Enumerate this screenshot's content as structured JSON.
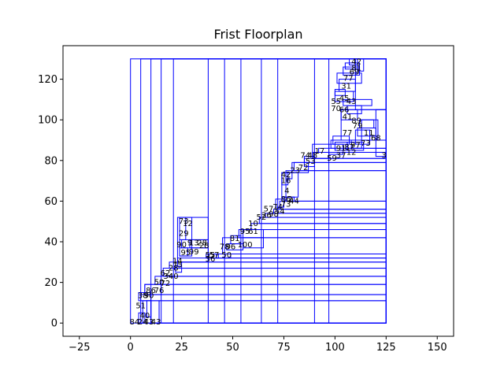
{
  "chart_data": {
    "type": "rectangles",
    "title": "Frist Floorplan",
    "xlabel": "",
    "ylabel": "",
    "xlim": [
      -33,
      158
    ],
    "ylim": [
      -6.5,
      136.5
    ],
    "xticks": [
      -25,
      0,
      25,
      50,
      75,
      100,
      125,
      150
    ],
    "yticks": [
      0,
      20,
      40,
      60,
      80,
      100,
      120
    ],
    "grid": false,
    "edge_color": "#0000ff",
    "rects": [
      {
        "x": 0,
        "y": 0,
        "w": 125,
        "h": 130
      },
      {
        "x": 5,
        "y": 0,
        "w": 120,
        "h": 130
      },
      {
        "x": 10,
        "y": 0,
        "w": 115,
        "h": 130
      },
      {
        "x": 15,
        "y": 0,
        "w": 110,
        "h": 130
      },
      {
        "x": 21,
        "y": 0,
        "w": 104,
        "h": 130
      },
      {
        "x": 38,
        "y": 0,
        "w": 87,
        "h": 130
      },
      {
        "x": 46,
        "y": 0,
        "w": 79,
        "h": 130
      },
      {
        "x": 54,
        "y": 0,
        "w": 71,
        "h": 130
      },
      {
        "x": 64,
        "y": 0,
        "w": 61,
        "h": 130
      },
      {
        "x": 72,
        "y": 0,
        "w": 53,
        "h": 130
      },
      {
        "x": 90,
        "y": 0,
        "w": 35,
        "h": 130
      },
      {
        "x": 97,
        "y": 0,
        "w": 28,
        "h": 130
      },
      {
        "x": 14,
        "y": 0,
        "w": 111,
        "h": 11
      },
      {
        "x": 5,
        "y": 11,
        "w": 120,
        "h": 3
      },
      {
        "x": 7,
        "y": 14,
        "w": 118,
        "h": 5
      },
      {
        "x": 12,
        "y": 19,
        "w": 113,
        "h": 4
      },
      {
        "x": 16,
        "y": 23,
        "w": 109,
        "h": 4
      },
      {
        "x": 19,
        "y": 27,
        "w": 106,
        "h": 3
      },
      {
        "x": 23,
        "y": 30,
        "w": 102,
        "h": 2
      },
      {
        "x": 37,
        "y": 32,
        "w": 88,
        "h": 2
      },
      {
        "x": 45,
        "y": 34,
        "w": 80,
        "h": 8
      },
      {
        "x": 53,
        "y": 42,
        "w": 72,
        "h": 4
      },
      {
        "x": 59,
        "y": 46,
        "w": 66,
        "h": 3
      },
      {
        "x": 63,
        "y": 49,
        "w": 62,
        "h": 3
      },
      {
        "x": 66,
        "y": 52,
        "w": 59,
        "h": 2
      },
      {
        "x": 70,
        "y": 54,
        "w": 55,
        "h": 2
      },
      {
        "x": 73,
        "y": 56,
        "w": 52,
        "h": 4
      },
      {
        "x": 76,
        "y": 60,
        "w": 49,
        "h": 15
      },
      {
        "x": 80,
        "y": 75,
        "w": 45,
        "h": 4
      },
      {
        "x": 85,
        "y": 79,
        "w": 40,
        "h": 2
      },
      {
        "x": 89,
        "y": 81,
        "w": 36,
        "h": 3
      },
      {
        "x": 92,
        "y": 84,
        "w": 33,
        "h": 2
      },
      {
        "x": 98,
        "y": 86,
        "w": 27,
        "h": 4
      },
      {
        "x": 103,
        "y": 90,
        "w": 22,
        "h": 15
      },
      {
        "x": 110,
        "y": 105,
        "w": 15,
        "h": 25
      },
      {
        "x": 22,
        "y": 25,
        "w": 3,
        "h": 3
      },
      {
        "x": 23,
        "y": 28,
        "w": 2,
        "h": 2
      },
      {
        "x": 23,
        "y": 30,
        "w": 15,
        "h": 22
      },
      {
        "x": 24,
        "y": 33,
        "w": 6,
        "h": 19
      },
      {
        "x": 24,
        "y": 41,
        "w": 3,
        "h": 11
      },
      {
        "x": 24,
        "y": 33,
        "w": 4,
        "h": 4
      },
      {
        "x": 25,
        "y": 37,
        "w": 13,
        "h": 4
      },
      {
        "x": 29,
        "y": 37,
        "w": 9,
        "h": 4
      },
      {
        "x": 38,
        "y": 32,
        "w": 5,
        "h": 2
      },
      {
        "x": 42,
        "y": 32,
        "w": 7,
        "h": 2
      },
      {
        "x": 47,
        "y": 36,
        "w": 8,
        "h": 3
      },
      {
        "x": 49,
        "y": 39,
        "w": 5,
        "h": 4
      },
      {
        "x": 55,
        "y": 37,
        "w": 10,
        "h": 5
      },
      {
        "x": 55,
        "y": 42,
        "w": 10,
        "h": 4
      },
      {
        "x": 71,
        "y": 57,
        "w": 4,
        "h": 4
      },
      {
        "x": 74,
        "y": 60,
        "w": 6,
        "h": 2
      },
      {
        "x": 74,
        "y": 62,
        "w": 8,
        "h": 12
      },
      {
        "x": 74,
        "y": 68,
        "w": 3,
        "h": 6
      },
      {
        "x": 76,
        "y": 71,
        "w": 3,
        "h": 3
      },
      {
        "x": 79,
        "y": 74,
        "w": 8,
        "h": 5
      },
      {
        "x": 85,
        "y": 77,
        "w": 5,
        "h": 5
      },
      {
        "x": 89,
        "y": 81,
        "w": 8,
        "h": 7
      },
      {
        "x": 97,
        "y": 83,
        "w": 7,
        "h": 5
      },
      {
        "x": 99,
        "y": 88,
        "w": 8,
        "h": 4
      },
      {
        "x": 100,
        "y": 85,
        "w": 6,
        "h": 4
      },
      {
        "x": 106,
        "y": 85,
        "w": 8,
        "h": 4
      },
      {
        "x": 108,
        "y": 86,
        "w": 5,
        "h": 4
      },
      {
        "x": 110,
        "y": 88,
        "w": 7,
        "h": 7
      },
      {
        "x": 111,
        "y": 92,
        "w": 9,
        "h": 4
      },
      {
        "x": 112,
        "y": 96,
        "w": 7,
        "h": 4
      },
      {
        "x": 113,
        "y": 90,
        "w": 8,
        "h": 10
      },
      {
        "x": 120,
        "y": 82,
        "w": 5,
        "h": 23
      },
      {
        "x": 103,
        "y": 100,
        "w": 8,
        "h": 5
      },
      {
        "x": 106,
        "y": 103,
        "w": 7,
        "h": 4
      },
      {
        "x": 104,
        "y": 107,
        "w": 14,
        "h": 3
      },
      {
        "x": 100,
        "y": 109,
        "w": 9,
        "h": 5
      },
      {
        "x": 100,
        "y": 112,
        "w": 5,
        "h": 3
      },
      {
        "x": 102,
        "y": 114,
        "w": 8,
        "h": 6
      },
      {
        "x": 101,
        "y": 118,
        "w": 12,
        "h": 5
      },
      {
        "x": 104,
        "y": 122,
        "w": 8,
        "h": 4
      },
      {
        "x": 105,
        "y": 125,
        "w": 7,
        "h": 3
      },
      {
        "x": 107,
        "y": 127,
        "w": 4,
        "h": 3
      },
      {
        "x": 111,
        "y": 124,
        "w": 3,
        "h": 6
      },
      {
        "x": 108,
        "y": 130,
        "w": 4,
        "h": 0
      },
      {
        "x": 6,
        "y": 0,
        "w": 4,
        "h": 11
      },
      {
        "x": 4,
        "y": 0,
        "w": 3,
        "h": 5
      },
      {
        "x": 8,
        "y": 3,
        "w": 2,
        "h": 8
      },
      {
        "x": 10,
        "y": 0,
        "w": 4,
        "h": 11
      },
      {
        "x": 4,
        "y": 11,
        "w": 6,
        "h": 4
      },
      {
        "x": 7,
        "y": 14,
        "w": 8,
        "h": 5
      }
    ],
    "labels": [
      {
        "x": 5.5,
        "y": 130.5,
        "text": ""
      },
      {
        "x": 110.5,
        "y": 128.5,
        "text": "42"
      },
      {
        "x": 110.5,
        "y": 125.5,
        "text": "81"
      },
      {
        "x": 109.5,
        "y": 123.5,
        "text": "69"
      },
      {
        "x": 106.5,
        "y": 120.5,
        "text": "77"
      },
      {
        "x": 105.5,
        "y": 116.5,
        "text": "31"
      },
      {
        "x": 104.5,
        "y": 110.5,
        "text": "45"
      },
      {
        "x": 100.5,
        "y": 109,
        "text": "55"
      },
      {
        "x": 108,
        "y": 109,
        "text": "43"
      },
      {
        "x": 100.5,
        "y": 105.5,
        "text": "70"
      },
      {
        "x": 104.5,
        "y": 105,
        "text": "66"
      },
      {
        "x": 106,
        "y": 101.5,
        "text": "41"
      },
      {
        "x": 110.5,
        "y": 99.5,
        "text": "89"
      },
      {
        "x": 111,
        "y": 97,
        "text": "79"
      },
      {
        "x": 106,
        "y": 93.5,
        "text": "77"
      },
      {
        "x": 116.5,
        "y": 93.5,
        "text": "11"
      },
      {
        "x": 120,
        "y": 91,
        "text": "68"
      },
      {
        "x": 115,
        "y": 88.5,
        "text": "73"
      },
      {
        "x": 110,
        "y": 87.5,
        "text": "97"
      },
      {
        "x": 107,
        "y": 86.5,
        "text": "87"
      },
      {
        "x": 103,
        "y": 86,
        "text": "91"
      },
      {
        "x": 108,
        "y": 84,
        "text": "12"
      },
      {
        "x": 103,
        "y": 82.5,
        "text": "37"
      },
      {
        "x": 98.5,
        "y": 81,
        "text": "59"
      },
      {
        "x": 92.5,
        "y": 84.5,
        "text": "17"
      },
      {
        "x": 89,
        "y": 82.5,
        "text": "48"
      },
      {
        "x": 85.5,
        "y": 82.5,
        "text": "74"
      },
      {
        "x": 88,
        "y": 79.5,
        "text": "53"
      },
      {
        "x": 124,
        "y": 82.5,
        "text": "3"
      },
      {
        "x": 84.5,
        "y": 76.5,
        "text": "72"
      },
      {
        "x": 80.5,
        "y": 75,
        "text": "23"
      },
      {
        "x": 76,
        "y": 73,
        "text": "42"
      },
      {
        "x": 76,
        "y": 70,
        "text": "16"
      },
      {
        "x": 76.5,
        "y": 65,
        "text": "4"
      },
      {
        "x": 76,
        "y": 61,
        "text": "86"
      },
      {
        "x": 80,
        "y": 60,
        "text": "44"
      },
      {
        "x": 76,
        "y": 58.5,
        "text": "73"
      },
      {
        "x": 72,
        "y": 57,
        "text": "74"
      },
      {
        "x": 73,
        "y": 55,
        "text": "54"
      },
      {
        "x": 67.5,
        "y": 56,
        "text": "57"
      },
      {
        "x": 70,
        "y": 53.5,
        "text": "98"
      },
      {
        "x": 66.5,
        "y": 53,
        "text": "26"
      },
      {
        "x": 64,
        "y": 52,
        "text": "52"
      },
      {
        "x": 60,
        "y": 49,
        "text": "10"
      },
      {
        "x": 56,
        "y": 45,
        "text": "95"
      },
      {
        "x": 60,
        "y": 45,
        "text": "61"
      },
      {
        "x": 51,
        "y": 41.5,
        "text": "81"
      },
      {
        "x": 56,
        "y": 38.5,
        "text": "100"
      },
      {
        "x": 49,
        "y": 37.5,
        "text": "96"
      },
      {
        "x": 46,
        "y": 37.5,
        "text": "78"
      },
      {
        "x": 47,
        "y": 33.5,
        "text": "50"
      },
      {
        "x": 41,
        "y": 33.5,
        "text": "57"
      },
      {
        "x": 39,
        "y": 33.5,
        "text": "55"
      },
      {
        "x": 39,
        "y": 31.5,
        "text": "36"
      },
      {
        "x": 28,
        "y": 49,
        "text": "12"
      },
      {
        "x": 26,
        "y": 50,
        "text": "73"
      },
      {
        "x": 26,
        "y": 44,
        "text": "29"
      },
      {
        "x": 25,
        "y": 38.5,
        "text": "90"
      },
      {
        "x": 29,
        "y": 39.5,
        "text": "9"
      },
      {
        "x": 31,
        "y": 39.5,
        "text": "13"
      },
      {
        "x": 35,
        "y": 39.5,
        "text": "28"
      },
      {
        "x": 36,
        "y": 38,
        "text": "28"
      },
      {
        "x": 31,
        "y": 35,
        "text": "99"
      },
      {
        "x": 27,
        "y": 34.5,
        "text": "95"
      },
      {
        "x": 23,
        "y": 30.5,
        "text": "14"
      },
      {
        "x": 23,
        "y": 28.5,
        "text": "75"
      },
      {
        "x": 21,
        "y": 27,
        "text": "28"
      },
      {
        "x": 17,
        "y": 24.5,
        "text": "62"
      },
      {
        "x": 21,
        "y": 23,
        "text": "40"
      },
      {
        "x": 18.5,
        "y": 23,
        "text": "34"
      },
      {
        "x": 14,
        "y": 20,
        "text": "50"
      },
      {
        "x": 17,
        "y": 19.5,
        "text": "72"
      },
      {
        "x": 10,
        "y": 16,
        "text": "86"
      },
      {
        "x": 14,
        "y": 16,
        "text": "76"
      },
      {
        "x": 6,
        "y": 13.5,
        "text": "38"
      },
      {
        "x": 9,
        "y": 13.5,
        "text": "90"
      },
      {
        "x": 5,
        "y": 8.5,
        "text": "51"
      },
      {
        "x": 7,
        "y": 3.5,
        "text": "40"
      },
      {
        "x": 2,
        "y": 0.5,
        "text": "84"
      },
      {
        "x": 6,
        "y": 0.5,
        "text": "24"
      },
      {
        "x": 9,
        "y": 0.5,
        "text": "43"
      },
      {
        "x": 12.5,
        "y": 0.5,
        "text": "43"
      },
      {
        "x": 78,
        "y": 61,
        "text": "2"
      }
    ]
  }
}
